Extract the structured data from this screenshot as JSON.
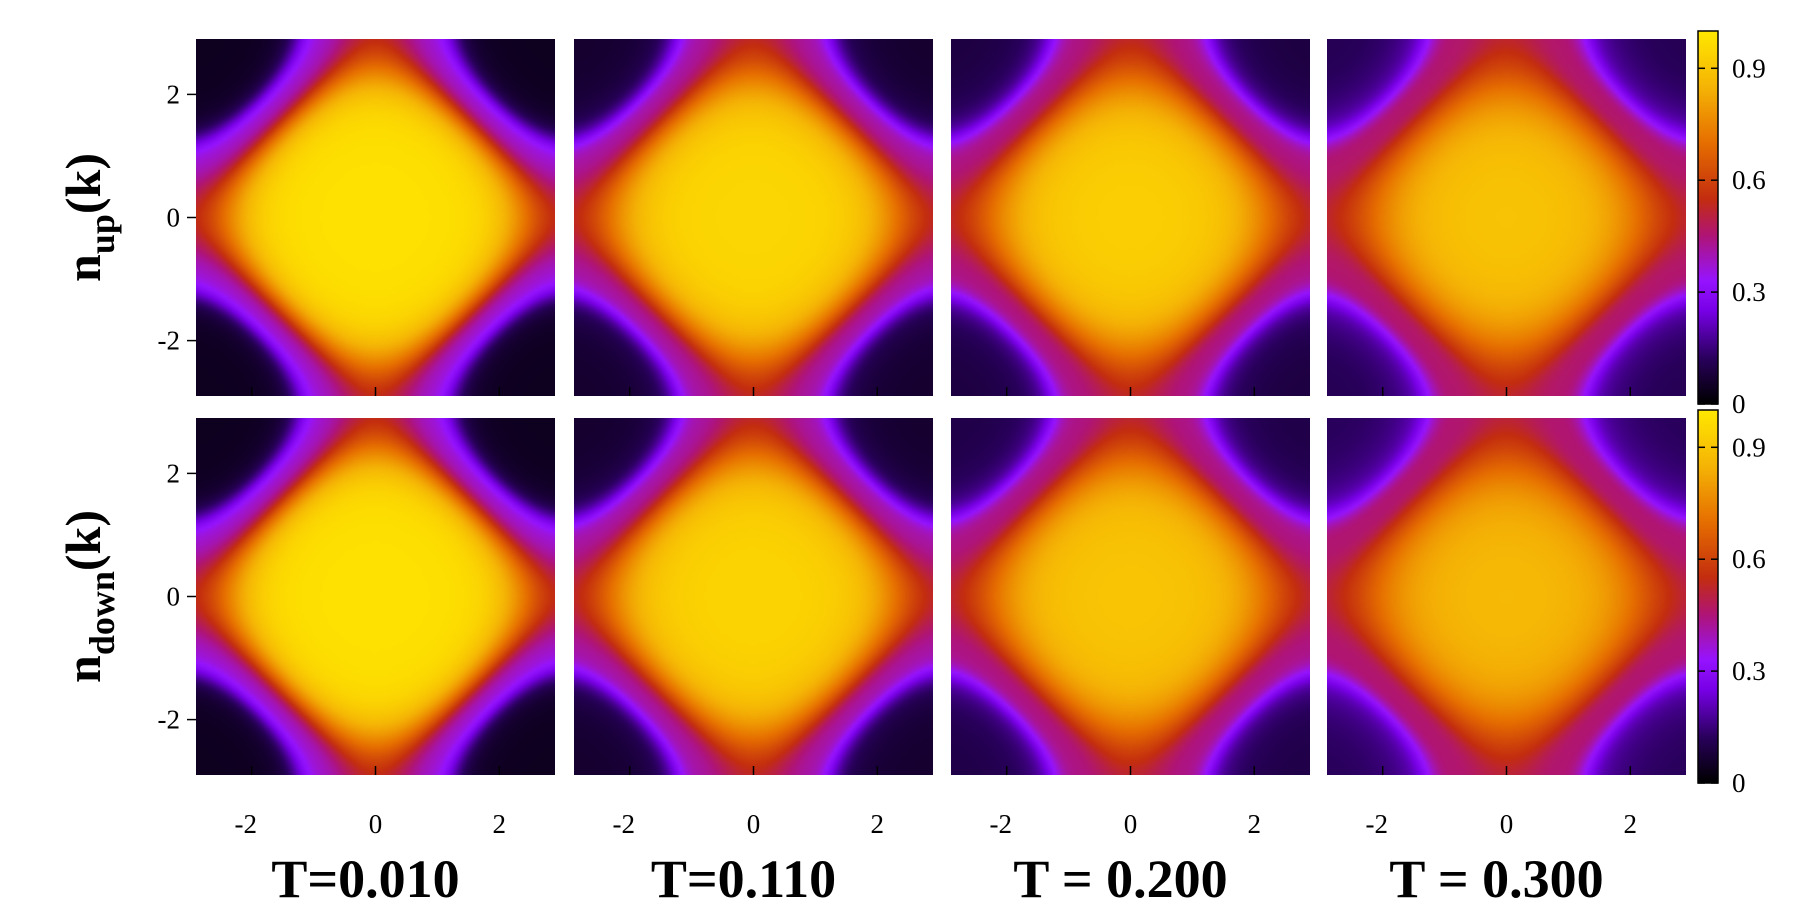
{
  "chart_data": {
    "type": "heatmap",
    "description_units": "momentum k_x, k_y in [-pi, pi]",
    "xlim": [
      -2.9,
      2.9
    ],
    "ylim": [
      -2.9,
      2.9
    ],
    "x_ticks": [
      "-2",
      "0",
      "2"
    ],
    "x_tick_values": [
      -2,
      0,
      2
    ],
    "y_ticks": [
      "-2",
      "0",
      "2"
    ],
    "y_tick_values": [
      -2,
      0,
      2
    ],
    "colorbar": {
      "range": [
        0,
        1
      ],
      "ticks": [
        "0",
        "0.3",
        "0.6",
        "0.9"
      ],
      "tick_values": [
        0,
        0.3,
        0.6,
        0.9
      ],
      "colors": [
        "#000000",
        "#3a006e",
        "#8c00ff",
        "#b11a6b",
        "#c0300a",
        "#e05e00",
        "#f2a600",
        "#ffe400"
      ]
    },
    "rows": [
      {
        "label_main": "n",
        "label_sub": "up",
        "label_tail": "(k)",
        "panels": [
          {
            "T": 0.01,
            "center": 0.98,
            "edge": 0.55,
            "corner": 0.04
          },
          {
            "T": 0.11,
            "center": 0.95,
            "edge": 0.55,
            "corner": 0.06
          },
          {
            "T": 0.2,
            "center": 0.93,
            "edge": 0.56,
            "corner": 0.08
          },
          {
            "T": 0.3,
            "center": 0.9,
            "edge": 0.56,
            "corner": 0.1
          }
        ]
      },
      {
        "label_main": "n",
        "label_sub": "down",
        "label_tail": "(k)",
        "panels": [
          {
            "T": 0.01,
            "center": 0.98,
            "edge": 0.55,
            "corner": 0.04
          },
          {
            "T": 0.11,
            "center": 0.94,
            "edge": 0.55,
            "corner": 0.06
          },
          {
            "T": 0.2,
            "center": 0.9,
            "edge": 0.56,
            "corner": 0.09
          },
          {
            "T": 0.3,
            "center": 0.87,
            "edge": 0.56,
            "corner": 0.11
          }
        ]
      }
    ],
    "column_titles": [
      "T=0.010",
      "T=0.110",
      "T = 0.200",
      "T = 0.300"
    ]
  }
}
